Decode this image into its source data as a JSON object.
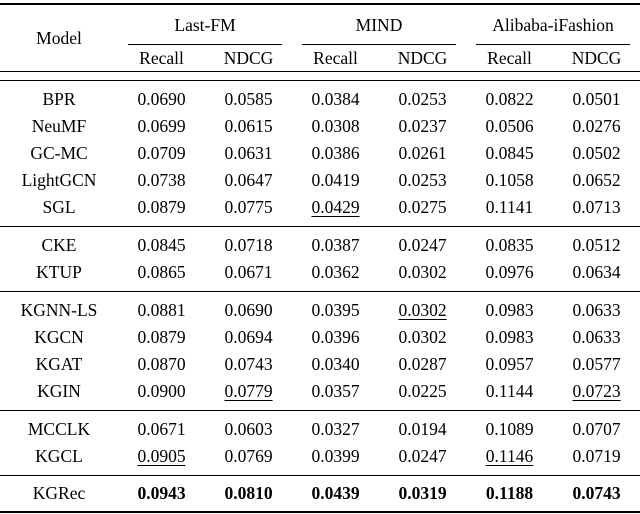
{
  "page": {
    "background_color": "#ffffff",
    "text_color": "#000000"
  },
  "table": {
    "header": {
      "model_label": "Model",
      "groups": [
        {
          "label": "Last-FM",
          "metrics": [
            "Recall",
            "NDCG"
          ]
        },
        {
          "label": "MIND",
          "metrics": [
            "Recall",
            "NDCG"
          ]
        },
        {
          "label": "Alibaba-iFashion",
          "metrics": [
            "Recall",
            "NDCG"
          ]
        }
      ]
    },
    "row_groups": [
      {
        "name": "general-cf",
        "rows": [
          {
            "model": "BPR",
            "values": [
              "0.0690",
              "0.0585",
              "0.0384",
              "0.0253",
              "0.0822",
              "0.0501"
            ],
            "underline": [],
            "bold": false
          },
          {
            "model": "NeuMF",
            "values": [
              "0.0699",
              "0.0615",
              "0.0308",
              "0.0237",
              "0.0506",
              "0.0276"
            ],
            "underline": [],
            "bold": false
          },
          {
            "model": "GC-MC",
            "values": [
              "0.0709",
              "0.0631",
              "0.0386",
              "0.0261",
              "0.0845",
              "0.0502"
            ],
            "underline": [],
            "bold": false
          },
          {
            "model": "LightGCN",
            "values": [
              "0.0738",
              "0.0647",
              "0.0419",
              "0.0253",
              "0.1058",
              "0.0652"
            ],
            "underline": [],
            "bold": false
          },
          {
            "model": "SGL",
            "values": [
              "0.0879",
              "0.0775",
              "0.0429",
              "0.0275",
              "0.1141",
              "0.0713"
            ],
            "underline": [
              2
            ],
            "bold": false
          }
        ]
      },
      {
        "name": "embedding-based",
        "rows": [
          {
            "model": "CKE",
            "values": [
              "0.0845",
              "0.0718",
              "0.0387",
              "0.0247",
              "0.0835",
              "0.0512"
            ],
            "underline": [],
            "bold": false
          },
          {
            "model": "KTUP",
            "values": [
              "0.0865",
              "0.0671",
              "0.0362",
              "0.0302",
              "0.0976",
              "0.0634"
            ],
            "underline": [],
            "bold": false
          }
        ]
      },
      {
        "name": "gnn-based",
        "rows": [
          {
            "model": "KGNN-LS",
            "values": [
              "0.0881",
              "0.0690",
              "0.0395",
              "0.0302",
              "0.0983",
              "0.0633"
            ],
            "underline": [
              3
            ],
            "bold": false
          },
          {
            "model": "KGCN",
            "values": [
              "0.0879",
              "0.0694",
              "0.0396",
              "0.0302",
              "0.0983",
              "0.0633"
            ],
            "underline": [],
            "bold": false
          },
          {
            "model": "KGAT",
            "values": [
              "0.0870",
              "0.0743",
              "0.0340",
              "0.0287",
              "0.0957",
              "0.0577"
            ],
            "underline": [],
            "bold": false
          },
          {
            "model": "KGIN",
            "values": [
              "0.0900",
              "0.0779",
              "0.0357",
              "0.0225",
              "0.1144",
              "0.0723"
            ],
            "underline": [
              1,
              5
            ],
            "bold": false
          }
        ]
      },
      {
        "name": "contrastive",
        "rows": [
          {
            "model": "MCCLK",
            "values": [
              "0.0671",
              "0.0603",
              "0.0327",
              "0.0194",
              "0.1089",
              "0.0707"
            ],
            "underline": [],
            "bold": false
          },
          {
            "model": "KGCL",
            "values": [
              "0.0905",
              "0.0769",
              "0.0399",
              "0.0247",
              "0.1146",
              "0.0719"
            ],
            "underline": [
              0,
              4
            ],
            "bold": false
          }
        ]
      },
      {
        "name": "ours",
        "rows": [
          {
            "model": "KGRec",
            "values": [
              "0.0943",
              "0.0810",
              "0.0439",
              "0.0319",
              "0.1188",
              "0.0743"
            ],
            "underline": [],
            "bold": true
          }
        ]
      }
    ]
  }
}
